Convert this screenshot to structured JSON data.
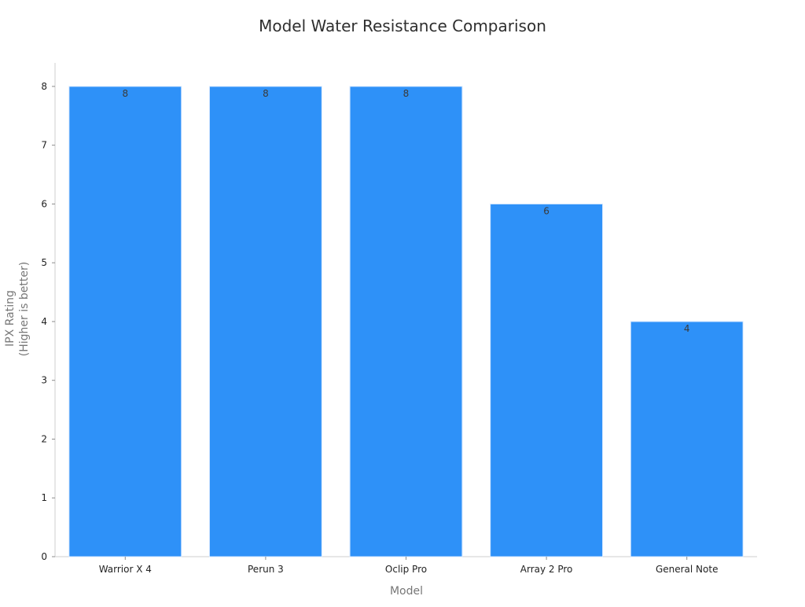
{
  "chart_data": {
    "type": "bar",
    "title": "Model Water Resistance Comparison",
    "xlabel": "Model",
    "ylabel_lines": [
      "IPX Rating",
      "(Higher is better)"
    ],
    "categories": [
      "Warrior X 4",
      "Perun 3",
      "Oclip Pro",
      "Array 2 Pro",
      "General Note"
    ],
    "values": [
      8,
      8,
      8,
      6,
      4
    ],
    "data_labels": [
      "8",
      "8",
      "8",
      "6",
      "4"
    ],
    "yticks": [
      0,
      1,
      2,
      3,
      4,
      5,
      6,
      7,
      8
    ],
    "ytick_labels": [
      "0",
      "1",
      "2",
      "3",
      "4",
      "5",
      "6",
      "7",
      "8"
    ],
    "ylim": [
      0,
      8.4
    ],
    "grid": false,
    "legend": "none",
    "bar_color": "#2e91f8",
    "bar_edge_color": "#d6e8ff"
  }
}
